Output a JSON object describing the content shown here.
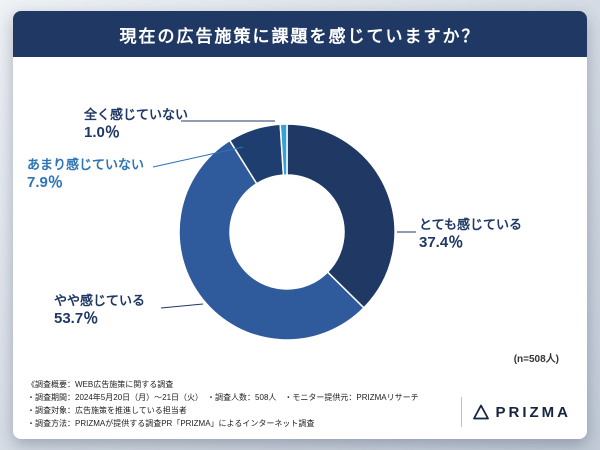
{
  "header": {
    "title": "現在の広告施策に課題を感じていますか？"
  },
  "chart_data": {
    "type": "pie",
    "donut": true,
    "title": "現在の広告施策に課題を感じていますか？",
    "categories": [
      "とても感じている",
      "やや感じている",
      "あまり感じていない",
      "全く感じていない"
    ],
    "values": [
      37.4,
      53.7,
      7.9,
      1.0
    ],
    "colors": [
      "#1f3864",
      "#2f5b9d",
      "#1d3e6e",
      "#35a1d6"
    ],
    "start_angle_deg": 0,
    "direction": "clockwise",
    "inner_radius_ratio": 0.53,
    "legend_position": "callouts",
    "sample_note": "(n=508人)"
  },
  "callouts": [
    {
      "label": "とても感じている",
      "pct": "37.4％"
    },
    {
      "label": "やや感じている",
      "pct": "53.7％"
    },
    {
      "label": "あまり感じていない",
      "pct": "7.9％"
    },
    {
      "label": "全く感じていない",
      "pct": "1.0％"
    }
  ],
  "footer": {
    "line1": "《調査概要：WEB広告施策に関する調査",
    "line2": "・調査期間：2024年5月20日（月）〜21日（火）　・調査人数：508人　・モニター提供元：PRIZMAリサーチ",
    "line3": "・調査対象：広告施策を推進している担当者",
    "line4": "・調査方法：PRIZMAが提供する調査PR「PRIZMA」によるインターネット調査"
  },
  "logo": {
    "text": "PRIZMA"
  },
  "colors": {
    "banner": "#1f3864",
    "label_dark": "#1f3864",
    "label_blue": "#2e75b6",
    "background_top": "#eef1f5",
    "background_bottom": "#c2cbd7"
  }
}
